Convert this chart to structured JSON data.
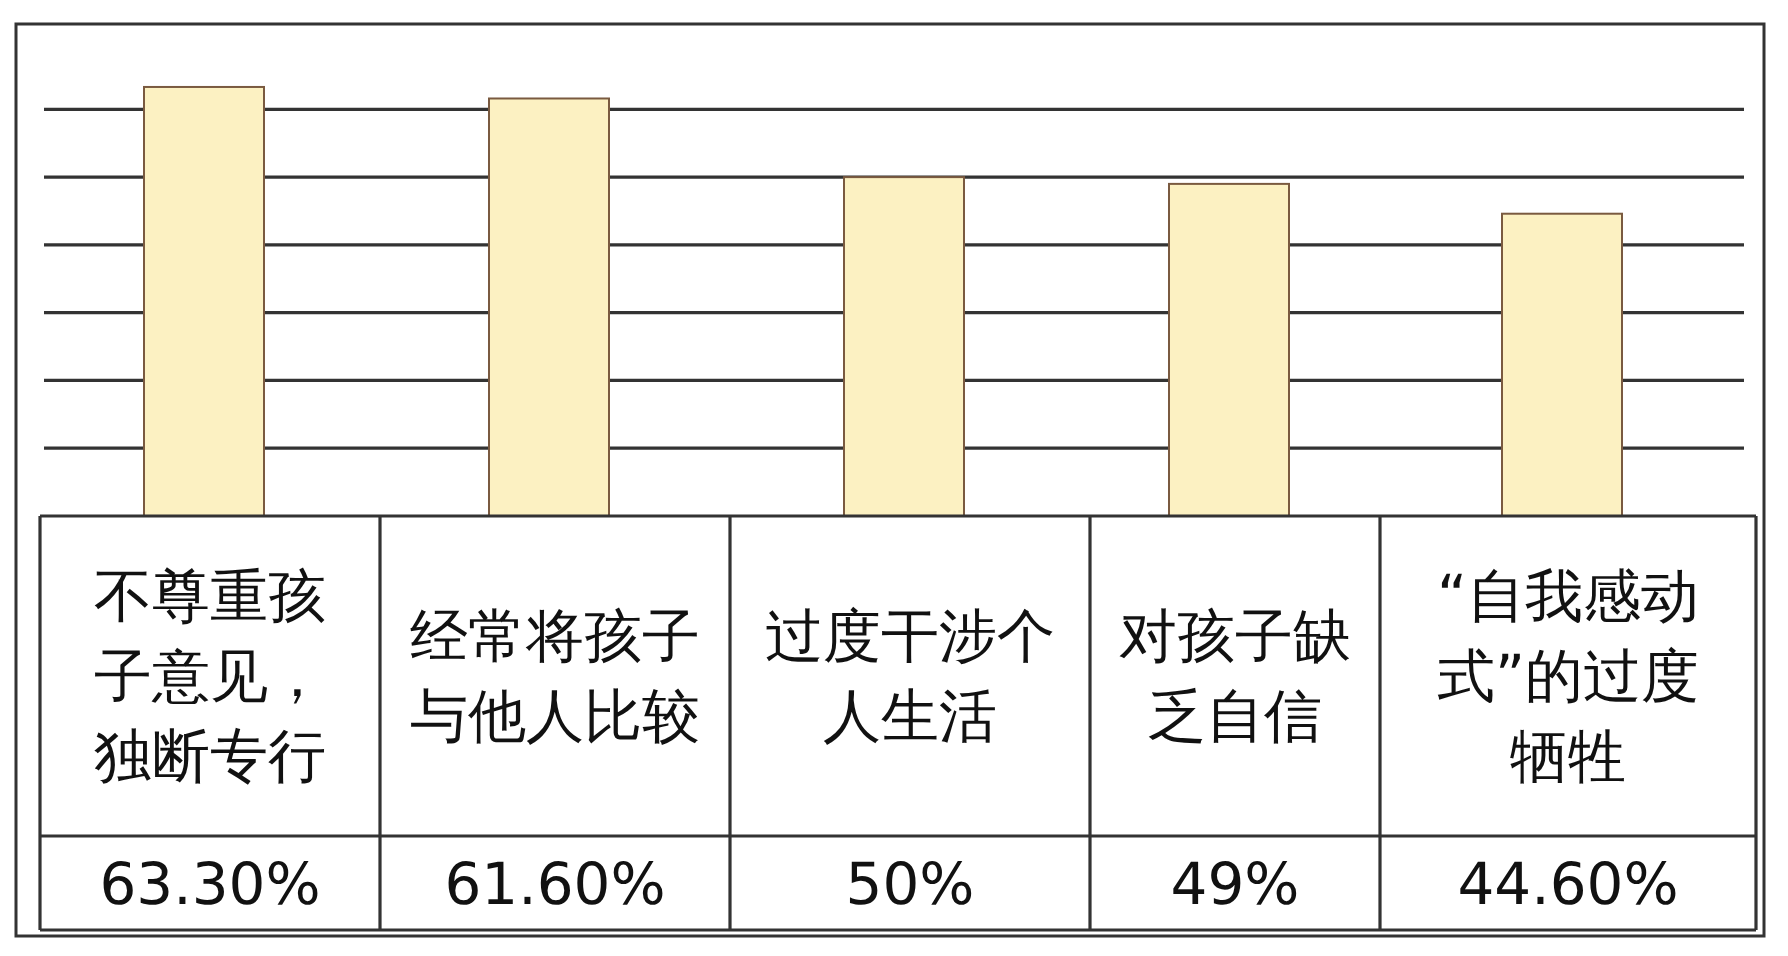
{
  "chart_data": {
    "type": "bar",
    "categories": [
      "不尊重孩子意见，独断专行",
      "经常将孩子与他人比较",
      "过度干涉个人生活",
      "对孩子缺乏自信",
      "“自我感动式”的过度牺牲"
    ],
    "values": [
      63.3,
      61.6,
      50,
      49,
      44.6
    ],
    "value_labels": [
      "63.30%",
      "61.60%",
      "50%",
      "49%",
      "44.60%"
    ],
    "color": "#fcf1c2",
    "ylim": [
      0,
      72
    ],
    "yticks": [
      {
        "value": 10,
        "label": null
      },
      {
        "value": 20,
        "label": null
      },
      {
        "value": 30,
        "label": null
      },
      {
        "value": 40,
        "label": null
      },
      {
        "value": 50,
        "label": null
      },
      {
        "value": 60,
        "label": null
      }
    ],
    "grid": "y"
  }
}
